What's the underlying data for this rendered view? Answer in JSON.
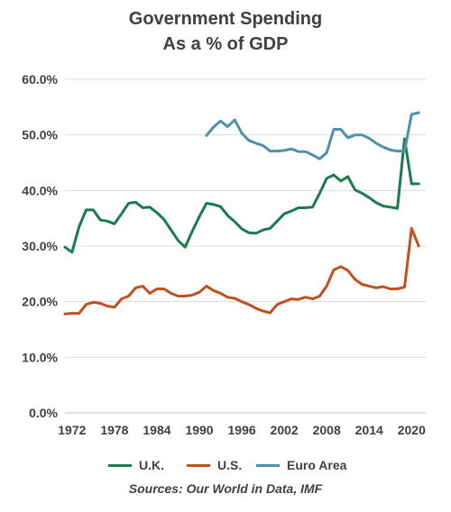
{
  "title_line1": "Government Spending",
  "title_line2": "As a % of GDP",
  "source": "Sources: Our World in Data, IMF",
  "chart_data": {
    "type": "line",
    "xlim": [
      1971,
      2022
    ],
    "ylim": [
      0,
      60
    ],
    "y_ticks": [
      "0.0%",
      "10.0%",
      "20.0%",
      "30.0%",
      "40.0%",
      "50.0%",
      "60.0%"
    ],
    "x_ticks": [
      "1972",
      "1978",
      "1984",
      "1990",
      "1996",
      "2002",
      "2008",
      "2014",
      "2020"
    ],
    "grid": true,
    "legend_position": "bottom",
    "series": [
      {
        "name": "U.K.",
        "color": "#1a7a50",
        "x": [
          1971,
          1972,
          1973,
          1974,
          1975,
          1976,
          1977,
          1978,
          1979,
          1980,
          1981,
          1982,
          1983,
          1984,
          1985,
          1986,
          1987,
          1988,
          1989,
          1990,
          1991,
          1992,
          1993,
          1994,
          1995,
          1996,
          1997,
          1998,
          1999,
          2000,
          2001,
          2002,
          2003,
          2004,
          2005,
          2006,
          2007,
          2008,
          2009,
          2010,
          2011,
          2012,
          2013,
          2014,
          2015,
          2016,
          2017,
          2018,
          2019,
          2020,
          2021
        ],
        "y": [
          29.8,
          28.9,
          33.5,
          36.5,
          36.5,
          34.7,
          34.5,
          34.0,
          35.8,
          37.7,
          37.9,
          36.9,
          37.0,
          36.0,
          34.8,
          32.9,
          31.0,
          29.8,
          32.7,
          35.3,
          37.7,
          37.5,
          37.1,
          35.5,
          34.4,
          33.1,
          32.4,
          32.3,
          32.9,
          33.2,
          34.5,
          35.8,
          36.3,
          36.9,
          36.9,
          37.0,
          39.5,
          42.2,
          42.8,
          41.7,
          42.5,
          40.1,
          39.5,
          38.7,
          37.8,
          37.2,
          37.0,
          36.8,
          49.3,
          41.2,
          41.2
        ]
      },
      {
        "name": "U.S.",
        "color": "#c0501e",
        "x": [
          1971,
          1972,
          1973,
          1974,
          1975,
          1976,
          1977,
          1978,
          1979,
          1980,
          1981,
          1982,
          1983,
          1984,
          1985,
          1986,
          1987,
          1988,
          1989,
          1990,
          1991,
          1992,
          1993,
          1994,
          1995,
          1996,
          1997,
          1998,
          1999,
          2000,
          2001,
          2002,
          2003,
          2004,
          2005,
          2006,
          2007,
          2008,
          2009,
          2010,
          2011,
          2012,
          2013,
          2014,
          2015,
          2016,
          2017,
          2018,
          2019,
          2020,
          2021
        ],
        "y": [
          17.8,
          17.9,
          17.9,
          19.5,
          19.9,
          19.7,
          19.2,
          19.0,
          20.5,
          21.0,
          22.5,
          22.8,
          21.5,
          22.3,
          22.3,
          21.5,
          21.0,
          21.0,
          21.2,
          21.7,
          22.8,
          22.0,
          21.5,
          20.8,
          20.6,
          20.0,
          19.5,
          18.8,
          18.3,
          18.0,
          19.5,
          20.0,
          20.5,
          20.4,
          20.8,
          20.5,
          21.0,
          22.8,
          25.7,
          26.3,
          25.6,
          24.0,
          23.1,
          22.8,
          22.5,
          22.7,
          22.3,
          22.3,
          22.6,
          33.2,
          30.0
        ]
      },
      {
        "name": "Euro Area",
        "color": "#4f91aa",
        "x": [
          1991,
          1992,
          1993,
          1994,
          1995,
          1996,
          1997,
          1998,
          1999,
          2000,
          2001,
          2002,
          2003,
          2004,
          2005,
          2006,
          2007,
          2008,
          2009,
          2010,
          2011,
          2012,
          2013,
          2014,
          2015,
          2016,
          2017,
          2018,
          2019,
          2020,
          2021
        ],
        "y": [
          49.9,
          51.4,
          52.5,
          51.5,
          52.7,
          50.3,
          49.0,
          48.5,
          48.1,
          47.1,
          47.1,
          47.2,
          47.5,
          47.0,
          47.0,
          46.4,
          45.7,
          46.8,
          51.0,
          51.0,
          49.5,
          50.0,
          50.0,
          49.4,
          48.5,
          47.8,
          47.3,
          47.1,
          47.1,
          53.7,
          54.0
        ]
      }
    ]
  }
}
